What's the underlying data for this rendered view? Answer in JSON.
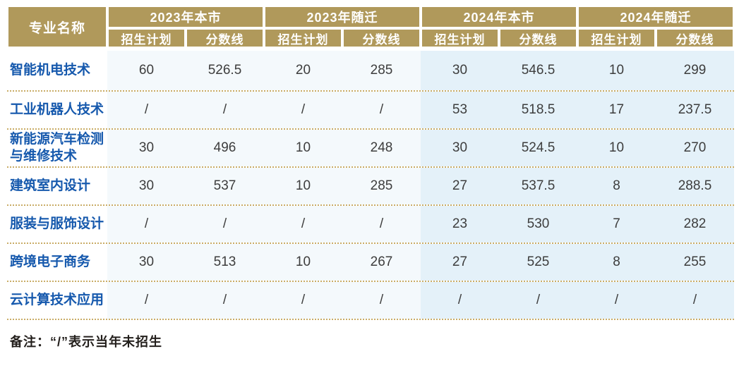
{
  "chart_data": {
    "type": "table",
    "row_header": "专业名称",
    "col_groups": [
      "2023年本市",
      "2023年随迁",
      "2024年本市",
      "2024年随迁"
    ],
    "sub_columns": [
      "招生计划",
      "分数线"
    ],
    "rows": [
      {
        "name": "智能机电技术",
        "values": [
          "60",
          "526.5",
          "20",
          "285",
          "30",
          "546.5",
          "10",
          "299"
        ]
      },
      {
        "name": "工业机器人技术",
        "values": [
          "/",
          "/",
          "/",
          "/",
          "53",
          "518.5",
          "17",
          "237.5"
        ]
      },
      {
        "name": "新能源汽车检测\n与维修技术",
        "values": [
          "30",
          "496",
          "10",
          "248",
          "30",
          "524.5",
          "10",
          "270"
        ]
      },
      {
        "name": "建筑室内设计",
        "values": [
          "30",
          "537",
          "10",
          "285",
          "27",
          "537.5",
          "8",
          "288.5"
        ]
      },
      {
        "name": "服装与服饰设计",
        "values": [
          "/",
          "/",
          "/",
          "/",
          "23",
          "530",
          "7",
          "282"
        ]
      },
      {
        "name": "跨境电子商务",
        "values": [
          "30",
          "513",
          "10",
          "267",
          "27",
          "525",
          "8",
          "255"
        ]
      },
      {
        "name": "云计算技术应用",
        "values": [
          "/",
          "/",
          "/",
          "/",
          "/",
          "/",
          "/",
          "/"
        ]
      }
    ],
    "note": "备注：“/”表示当年未招生"
  },
  "colors": {
    "header_gold": "#B0995B",
    "dotted_gold": "#C9AC66",
    "bg_2023": "#F4F9FC",
    "bg_2024": "#E4F1F9",
    "label_blue": "#1659AD",
    "value_gray": "#3D3D3D",
    "note_dark": "#231F1C"
  }
}
